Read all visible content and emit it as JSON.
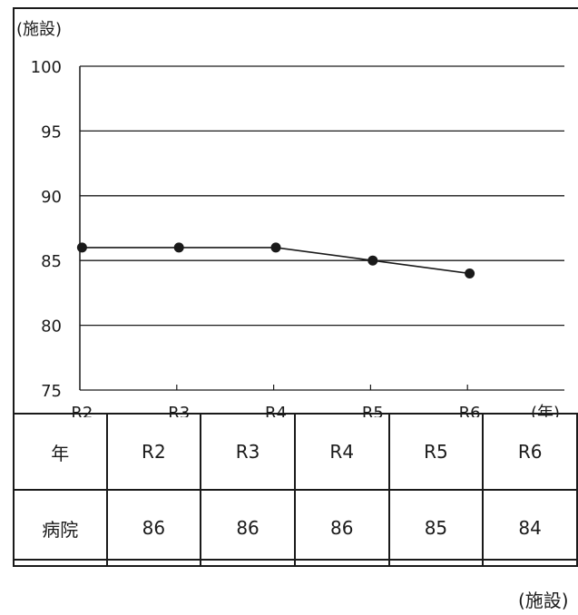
{
  "chart_data": {
    "type": "line",
    "categories": [
      "R2",
      "R3",
      "R4",
      "R5",
      "R6"
    ],
    "series": [
      {
        "name": "病院",
        "values": [
          86,
          86,
          86,
          85,
          84
        ]
      }
    ],
    "ylim": [
      75,
      100
    ],
    "yticks": [
      "75",
      "80",
      "85",
      "90",
      "95",
      "100"
    ],
    "y_unit": "(施設)",
    "x_unit": "(年)",
    "grid": true,
    "color": "#1a1a1a"
  },
  "table": {
    "header_label": "年",
    "row_label": "病院",
    "columns": [
      "R2",
      "R3",
      "R4",
      "R5",
      "R6"
    ],
    "values": [
      "86",
      "86",
      "86",
      "85",
      "84"
    ]
  },
  "unit_note": "(施設)"
}
